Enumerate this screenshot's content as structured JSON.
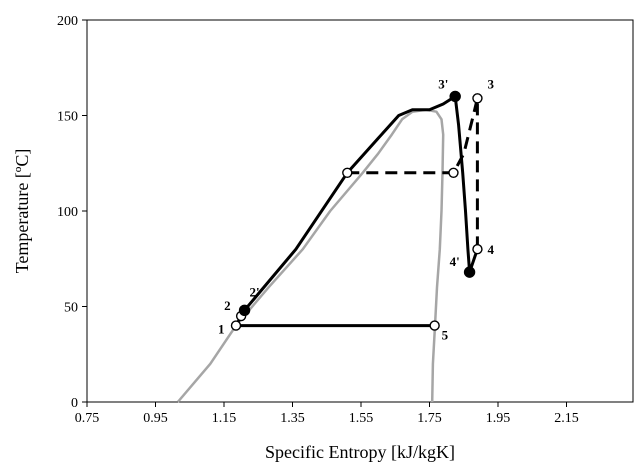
{
  "chart_data": {
    "type": "line",
    "title": "",
    "xlabel": "Specific Entropy [kJ/kgK]",
    "ylabel": "Temperature [ºC]",
    "xlim": [
      0.75,
      2.25
    ],
    "ylim": [
      0,
      200
    ],
    "x_ticks": [
      "0.75",
      "0.95",
      "1.15",
      "1.35",
      "1.55",
      "1.75",
      "1.95",
      "2.15"
    ],
    "y_ticks": [
      "0",
      "50",
      "100",
      "150",
      "200"
    ],
    "grid": false,
    "legend": "none",
    "series": [
      {
        "style": "gray-solid",
        "color": "#a6a6a6",
        "points": [
          [
            1.015,
            0
          ],
          [
            1.11,
            20
          ],
          [
            1.185,
            40
          ],
          [
            1.28,
            60
          ],
          [
            1.38,
            80
          ],
          [
            1.46,
            100
          ],
          [
            1.555,
            120
          ],
          [
            1.6,
            130
          ],
          [
            1.64,
            140
          ],
          [
            1.67,
            148
          ],
          [
            1.7,
            152
          ],
          [
            1.74,
            153
          ],
          [
            1.77,
            152
          ],
          [
            1.785,
            148
          ],
          [
            1.79,
            140
          ],
          [
            1.788,
            120
          ],
          [
            1.785,
            100
          ],
          [
            1.78,
            80
          ],
          [
            1.772,
            60
          ],
          [
            1.766,
            40
          ],
          [
            1.76,
            20
          ],
          [
            1.758,
            0
          ]
        ]
      },
      {
        "style": "black-solid",
        "color": "#000000",
        "points": [
          [
            1.765,
            40
          ],
          [
            1.185,
            40
          ],
          [
            1.2,
            45
          ],
          [
            1.21,
            48
          ],
          [
            1.36,
            80
          ],
          [
            1.51,
            120
          ],
          [
            1.6,
            138
          ],
          [
            1.66,
            150
          ],
          [
            1.7,
            153
          ],
          [
            1.75,
            153
          ],
          [
            1.79,
            156
          ],
          [
            1.825,
            160
          ],
          [
            1.835,
            145
          ],
          [
            1.847,
            120
          ],
          [
            1.855,
            100
          ],
          [
            1.862,
            80
          ],
          [
            1.867,
            68
          ],
          [
            1.89,
            80
          ],
          [
            1.89,
            82
          ]
        ]
      },
      {
        "style": "black-dashed",
        "color": "#000000",
        "points": [
          [
            1.51,
            120
          ],
          [
            1.82,
            120
          ],
          [
            1.85,
            130
          ],
          [
            1.878,
            150
          ],
          [
            1.89,
            159
          ],
          [
            1.89,
            80
          ]
        ]
      }
    ],
    "markers": [
      {
        "label": "1",
        "x": 1.185,
        "y": 40,
        "filled": false
      },
      {
        "label": "2",
        "x": 1.2,
        "y": 45,
        "filled": false
      },
      {
        "label": "2'",
        "x": 1.21,
        "y": 48,
        "filled": true
      },
      {
        "label": "3",
        "x": 1.89,
        "y": 159,
        "filled": false
      },
      {
        "label": "3'",
        "x": 1.825,
        "y": 160,
        "filled": true
      },
      {
        "label": "4",
        "x": 1.89,
        "y": 80,
        "filled": false
      },
      {
        "label": "4'",
        "x": 1.867,
        "y": 68,
        "filled": true
      },
      {
        "label": "5",
        "x": 1.765,
        "y": 40,
        "filled": false
      },
      {
        "label": "",
        "x": 1.51,
        "y": 120,
        "filled": false
      },
      {
        "label": "",
        "x": 1.82,
        "y": 120,
        "filled": false
      }
    ]
  }
}
